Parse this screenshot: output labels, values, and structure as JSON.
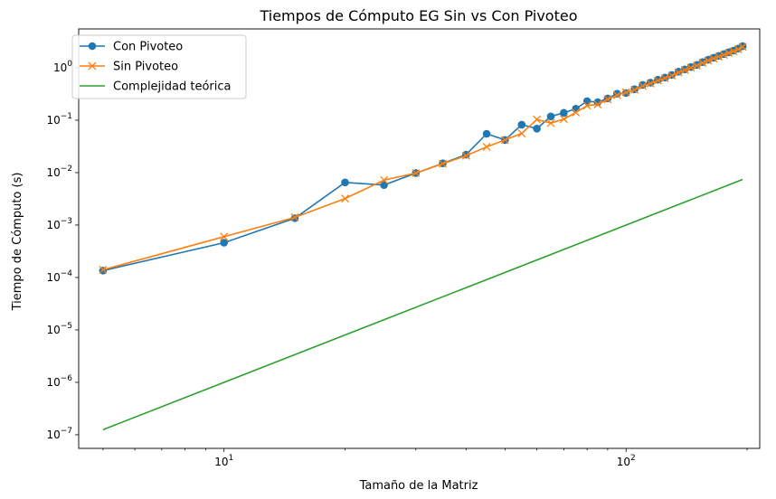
{
  "chart_data": {
    "type": "line",
    "title": "Tiempos de Cómputo EG Sin vs Con Pivoteo",
    "xlabel": "Tamaño de la Matriz",
    "ylabel": "Tiempo de Cómputo (s)",
    "xscale": "log",
    "yscale": "log",
    "xlim": [
      4.35,
      215
    ],
    "ylim": [
      5.5e-08,
      5.5
    ],
    "grid": false,
    "legend_position": "top-left",
    "x_tick_labels": [
      {
        "value": 10,
        "base": "10",
        "exp": "1"
      },
      {
        "value": 100,
        "base": "10",
        "exp": "2"
      }
    ],
    "y_tick_labels": [
      {
        "value": 1e-07,
        "base": "10",
        "exp": "−7"
      },
      {
        "value": 1e-06,
        "base": "10",
        "exp": "−6"
      },
      {
        "value": 1e-05,
        "base": "10",
        "exp": "−5"
      },
      {
        "value": 0.0001,
        "base": "10",
        "exp": "−4"
      },
      {
        "value": 0.001,
        "base": "10",
        "exp": "−3"
      },
      {
        "value": 0.01,
        "base": "10",
        "exp": "−2"
      },
      {
        "value": 0.1,
        "base": "10",
        "exp": "−1"
      },
      {
        "value": 1,
        "base": "10",
        "exp": "0"
      }
    ],
    "series": [
      {
        "name": "Con Pivoteo",
        "color": "#1f77b4",
        "marker": "circle",
        "x": [
          5,
          10,
          15,
          20,
          25,
          30,
          35,
          40,
          45,
          50,
          55,
          60,
          65,
          70,
          75,
          80,
          85,
          90,
          95,
          100,
          105,
          110,
          115,
          120,
          125,
          130,
          135,
          140,
          145,
          150,
          155,
          160,
          165,
          170,
          175,
          180,
          185,
          190,
          195
        ],
        "y": [
          0.000135,
          0.00046,
          0.00135,
          0.0065,
          0.0058,
          0.0098,
          0.015,
          0.022,
          0.055,
          0.042,
          0.082,
          0.069,
          0.118,
          0.138,
          0.165,
          0.23,
          0.22,
          0.26,
          0.32,
          0.33,
          0.39,
          0.47,
          0.52,
          0.59,
          0.65,
          0.73,
          0.84,
          0.93,
          1.03,
          1.13,
          1.28,
          1.42,
          1.55,
          1.68,
          1.82,
          1.97,
          2.12,
          2.32,
          2.58
        ]
      },
      {
        "name": "Sin Pivoteo",
        "color": "#ff7f0e",
        "marker": "x",
        "x": [
          5,
          10,
          15,
          20,
          25,
          30,
          35,
          40,
          45,
          50,
          55,
          60,
          65,
          70,
          75,
          80,
          85,
          90,
          95,
          100,
          105,
          110,
          115,
          120,
          125,
          130,
          135,
          140,
          145,
          150,
          155,
          160,
          165,
          170,
          175,
          180,
          185,
          190,
          195
        ],
        "y": [
          0.00014,
          0.0006,
          0.0014,
          0.0032,
          0.0072,
          0.0098,
          0.0148,
          0.021,
          0.031,
          0.042,
          0.056,
          0.103,
          0.088,
          0.105,
          0.14,
          0.19,
          0.2,
          0.25,
          0.3,
          0.34,
          0.38,
          0.45,
          0.5,
          0.57,
          0.63,
          0.71,
          0.81,
          0.9,
          1.0,
          1.1,
          1.24,
          1.37,
          1.5,
          1.62,
          1.76,
          1.91,
          2.06,
          2.25,
          2.5
        ]
      },
      {
        "name": "Complejidad teórica",
        "color": "#2ca02c",
        "marker": "none",
        "x": [
          5,
          195
        ],
        "y": [
          1.25e-07,
          0.0074
        ]
      }
    ]
  }
}
